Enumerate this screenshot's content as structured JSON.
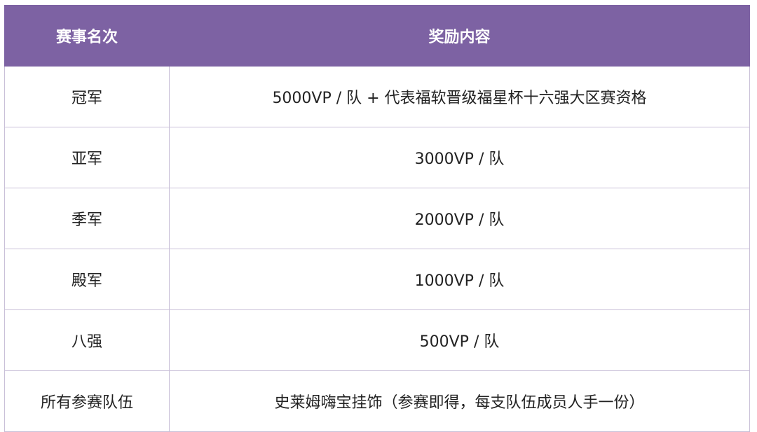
{
  "table": {
    "header": [
      "赛事名次",
      "奖励内容"
    ],
    "rows": [
      [
        "冠军",
        "5000VP / 队 + 代表福软晋级福星杯十六强大区赛资格"
      ],
      [
        "亚军",
        "3000VP / 队"
      ],
      [
        "季军",
        "2000VP / 队"
      ],
      [
        "殿军",
        "1000VP / 队"
      ],
      [
        "八强",
        "500VP / 队"
      ],
      [
        "所有参赛队伍",
        "史莱姆嗨宝挂饰（参赛即得，每支队伍成员人手一份）"
      ]
    ]
  }
}
